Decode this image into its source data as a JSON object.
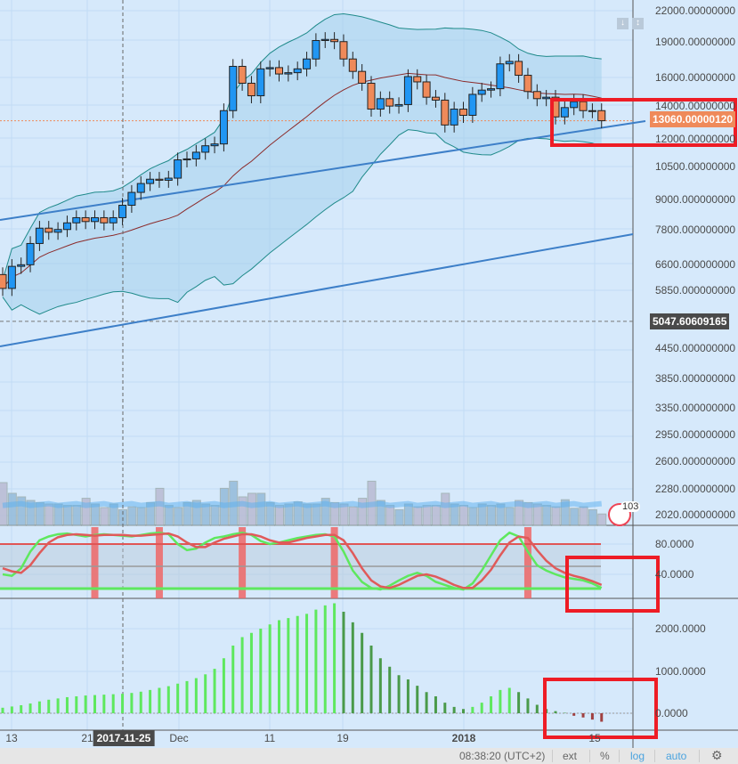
{
  "price_axis": {
    "labels": [
      {
        "text": "22000.00000000",
        "price": 22000
      },
      {
        "text": "19000.00000000",
        "price": 19000
      },
      {
        "text": "16000.00000000",
        "price": 16000
      },
      {
        "text": "14000.00000000",
        "price": 14000
      },
      {
        "text": "12000.00000000",
        "price": 12000
      },
      {
        "text": "10500.00000000",
        "price": 10500
      },
      {
        "text": "9000.000000000",
        "price": 9000
      },
      {
        "text": "7800.000000000",
        "price": 7800
      },
      {
        "text": "6600.000000000",
        "price": 6600
      },
      {
        "text": "5850.000000000",
        "price": 5850
      },
      {
        "text": "4450.000000000",
        "price": 4450
      },
      {
        "text": "3850.000000000",
        "price": 3850
      },
      {
        "text": "3350.000000000",
        "price": 3350
      },
      {
        "text": "2950.000000000",
        "price": 2950
      },
      {
        "text": "2600.000000000",
        "price": 2600
      },
      {
        "text": "2280.000000000",
        "price": 2280
      },
      {
        "text": "2020.000000000",
        "price": 2020
      }
    ],
    "last_price_badge": "13060.00000120",
    "last_price": 13060,
    "level_badge": "5047.60609165",
    "level_price": 5047.6
  },
  "stoch_axis": [
    "80.0000",
    "40.0000"
  ],
  "macd_axis": [
    "2000.0000",
    "1000.0000",
    "0.0000"
  ],
  "time_axis": {
    "labels": [
      "13",
      "21",
      "Dec",
      "11",
      "19",
      "2018",
      "15"
    ],
    "crosshair_date": "2017-11-25"
  },
  "indicator_badge": "103",
  "bottom_bar": {
    "time": "08:38:20 (UTC+2)",
    "ext": "ext",
    "percent": "%",
    "log": "log",
    "auto": "auto"
  },
  "colors": {
    "up": "#2196f3",
    "down": "#ef8a5a",
    "highlight": "#ee1c25",
    "stoch_k": "#5ee85e",
    "stoch_d": "#e05a5a",
    "macd_up": "#5ee85e",
    "macd_down": "#4a9a4a",
    "trend": "#3d7fc8"
  },
  "candles": {
    "open": [
      6300,
      5900,
      6550,
      6600,
      7300,
      7850,
      7700,
      7800,
      8050,
      8250,
      8100,
      8250,
      8050,
      8250,
      8750,
      9300,
      9700,
      9900,
      9850,
      9950,
      10850,
      10900,
      11250,
      11600,
      11700,
      13700,
      16900,
      15600,
      14700,
      16700,
      16800,
      16300,
      16400,
      16700,
      17500,
      19100,
      19200,
      19000,
      17500,
      16500,
      15600,
      13800,
      14500,
      14000,
      14100,
      16100,
      15700,
      14600,
      14400,
      12800,
      13800,
      13400,
      14800,
      15100,
      15200,
      17100,
      17300,
      16200,
      15000,
      14500,
      14600,
      13300,
      13900,
      14300,
      13700,
      13700
    ],
    "close": [
      5900,
      6550,
      6600,
      7300,
      7850,
      7700,
      7800,
      8050,
      8250,
      8100,
      8250,
      8050,
      8250,
      8750,
      9300,
      9700,
      9900,
      9850,
      9950,
      10850,
      10900,
      11250,
      11600,
      11700,
      13700,
      16900,
      15600,
      14700,
      16700,
      16800,
      16300,
      16400,
      16700,
      17500,
      19100,
      19200,
      19000,
      17500,
      16500,
      15600,
      13800,
      14500,
      14000,
      14100,
      16100,
      15700,
      14600,
      14400,
      12800,
      13800,
      13400,
      14800,
      15100,
      15200,
      17100,
      17300,
      16200,
      15000,
      14500,
      14600,
      13300,
      13900,
      14300,
      13700,
      13700,
      13060
    ]
  },
  "volume": [
    60,
    45,
    40,
    35,
    32,
    30,
    30,
    28,
    28,
    38,
    30,
    25,
    30,
    22,
    26,
    25,
    32,
    52,
    28,
    25,
    32,
    35,
    30,
    28,
    52,
    62,
    40,
    45,
    45,
    32,
    28,
    30,
    33,
    30,
    30,
    38,
    32,
    30,
    26,
    38,
    62,
    35,
    28,
    22,
    30,
    26,
    28,
    28,
    45,
    30,
    28,
    25,
    30,
    28,
    30,
    25,
    35,
    32,
    30,
    28,
    26,
    36,
    24,
    26,
    22,
    16
  ],
  "stoch": {
    "k": [
      40,
      38,
      48,
      70,
      85,
      90,
      93,
      94,
      92,
      90,
      92,
      93,
      92,
      91,
      90,
      92,
      94,
      95,
      93,
      80,
      72,
      74,
      82,
      88,
      90,
      93,
      95,
      92,
      84,
      80,
      82,
      85,
      88,
      90,
      92,
      93,
      90,
      70,
      45,
      30,
      22,
      20,
      25,
      32,
      38,
      42,
      38,
      30,
      26,
      22,
      20,
      28,
      45,
      65,
      85,
      95,
      90,
      70,
      52,
      45,
      40,
      36,
      34,
      32,
      28,
      22
    ],
    "d": [
      48,
      44,
      42,
      52,
      68,
      82,
      89,
      92,
      93,
      92,
      91,
      92,
      92,
      92,
      91,
      91,
      92,
      93,
      94,
      90,
      82,
      76,
      76,
      82,
      87,
      90,
      93,
      93,
      90,
      85,
      82,
      82,
      85,
      88,
      90,
      92,
      92,
      85,
      68,
      48,
      32,
      24,
      22,
      26,
      32,
      38,
      40,
      37,
      32,
      26,
      22,
      22,
      32,
      46,
      65,
      82,
      90,
      88,
      72,
      58,
      48,
      42,
      38,
      35,
      31,
      26
    ]
  },
  "stoch_signals": [
    10,
    17,
    26,
    36,
    57
  ],
  "macd_hist": [
    130,
    160,
    190,
    230,
    280,
    320,
    350,
    380,
    400,
    420,
    430,
    440,
    450,
    460,
    480,
    510,
    550,
    600,
    640,
    700,
    760,
    830,
    920,
    1050,
    1300,
    1600,
    1800,
    1900,
    2000,
    2100,
    2200,
    2250,
    2300,
    2350,
    2450,
    2550,
    2600,
    2400,
    2150,
    1900,
    1600,
    1300,
    1100,
    900,
    800,
    650,
    500,
    400,
    250,
    150,
    100,
    150,
    250,
    400,
    550,
    600,
    500,
    350,
    200,
    100,
    50,
    10,
    -60,
    -100,
    -150,
    -200
  ]
}
